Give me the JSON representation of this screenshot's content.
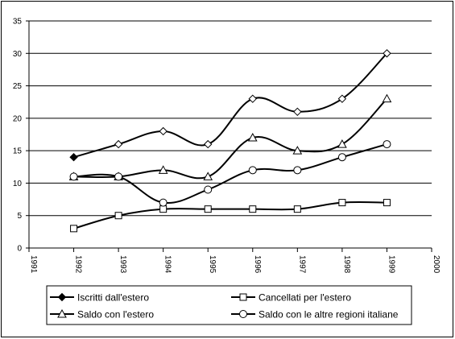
{
  "chart_data": {
    "type": "line",
    "title": "",
    "xlabel": "",
    "ylabel": "",
    "xlim": [
      1991,
      2000
    ],
    "ylim": [
      0,
      35
    ],
    "x_ticks": [
      "1991",
      "1992",
      "1993",
      "1994",
      "1995",
      "1996",
      "1997",
      "1998",
      "1999",
      "2000"
    ],
    "y_ticks": [
      "0",
      "5",
      "10",
      "15",
      "20",
      "25",
      "30",
      "35"
    ],
    "grid": "horizontal",
    "legend_position": "bottom",
    "series": [
      {
        "name": "Iscritti dall'estero",
        "marker": "filled-diamond",
        "points": [
          [
            1992,
            14
          ],
          [
            1993,
            16
          ],
          [
            1994,
            18
          ],
          [
            1995,
            16
          ],
          [
            1996,
            23
          ],
          [
            1997,
            21
          ],
          [
            1998,
            23
          ],
          [
            1999,
            30
          ]
        ]
      },
      {
        "name": "Cancellati per l'estero",
        "marker": "open-square",
        "points": [
          [
            1992,
            3
          ],
          [
            1993,
            5
          ],
          [
            1994,
            6
          ],
          [
            1995,
            6
          ],
          [
            1996,
            6
          ],
          [
            1997,
            6
          ],
          [
            1998,
            7
          ],
          [
            1999,
            7
          ]
        ]
      },
      {
        "name": "Saldo con l'estero",
        "marker": "open-triangle",
        "points": [
          [
            1992,
            11
          ],
          [
            1993,
            11
          ],
          [
            1994,
            12
          ],
          [
            1995,
            11
          ],
          [
            1996,
            17
          ],
          [
            1997,
            15
          ],
          [
            1998,
            16
          ],
          [
            1999,
            23
          ]
        ]
      },
      {
        "name": "Saldo con le altre regioni italiane",
        "marker": "open-circle",
        "points": [
          [
            1992,
            11
          ],
          [
            1993,
            11
          ],
          [
            1994,
            7
          ],
          [
            1995,
            9
          ],
          [
            1996,
            12
          ],
          [
            1997,
            12
          ],
          [
            1998,
            14
          ],
          [
            1999,
            16
          ]
        ]
      }
    ],
    "extra_markers": [
      {
        "marker": "open-diamond",
        "points": [
          [
            1993,
            16
          ],
          [
            1994,
            18
          ],
          [
            1995,
            16
          ],
          [
            1996,
            23
          ],
          [
            1997,
            21
          ],
          [
            1998,
            23
          ],
          [
            1999,
            30
          ]
        ]
      }
    ]
  }
}
